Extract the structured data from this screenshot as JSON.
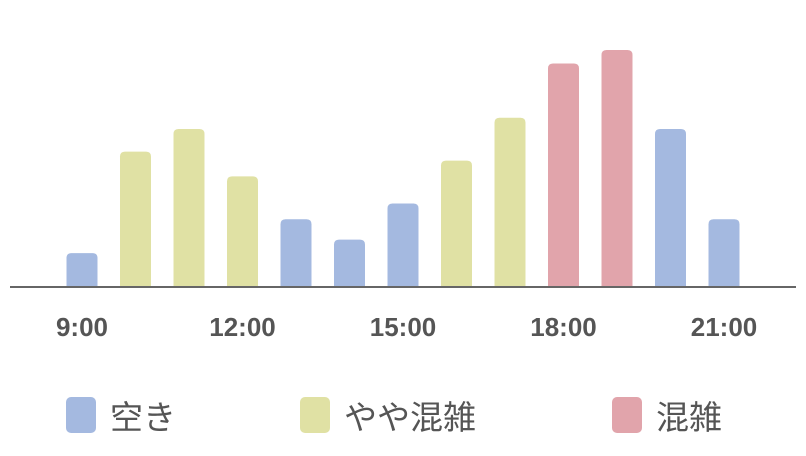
{
  "chart_data": {
    "type": "bar",
    "categories": [
      "9:00",
      "10:00",
      "11:00",
      "12:00",
      "13:00",
      "14:00",
      "15:00",
      "16:00",
      "17:00",
      "18:00",
      "19:00",
      "20:00",
      "21:00"
    ],
    "values": [
      15,
      60,
      70,
      49,
      30,
      21,
      37,
      56,
      75,
      99,
      105,
      70,
      30
    ],
    "levels": [
      "空き",
      "やや混雑",
      "やや混雑",
      "やや混雑",
      "空き",
      "空き",
      "空き",
      "やや混雑",
      "やや混雑",
      "混雑",
      "混雑",
      "空き",
      "空き"
    ],
    "tick_labels": [
      "9:00",
      "12:00",
      "15:00",
      "18:00",
      "21:00"
    ],
    "ylim": [
      0,
      105
    ],
    "grid": false,
    "y_axis_visible": false,
    "legend_position": "bottom",
    "legend": [
      {
        "label": "空き",
        "color": "#a4b9e0"
      },
      {
        "label": "やや混雑",
        "color": "#e0e1a4"
      },
      {
        "label": "混雑",
        "color": "#e1a4ab"
      }
    ],
    "axis_color": "#666666"
  }
}
